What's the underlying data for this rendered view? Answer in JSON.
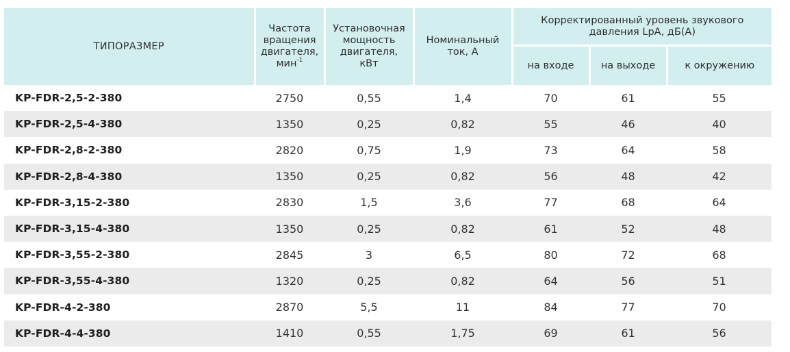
{
  "header": {
    "model": "ТИПОРАЗМЕР",
    "freq_line1": "Частота",
    "freq_line2": "вращения",
    "freq_line3": "двигателя,",
    "freq_unit": "мин",
    "freq_sup": "-1",
    "power_line1": "Установочная",
    "power_line2": "мощность",
    "power_line3": "двигателя,",
    "power_line4": "кВт",
    "current_line1": "Номинальный",
    "current_line2": "ток, А",
    "noise_line1": "Корректированный уровень звукового",
    "noise_line2": "давления LpA, дБ(А)",
    "noise_in": "на входе",
    "noise_out": "на выходе",
    "noise_env": "к окружению"
  },
  "rows": [
    {
      "model": "KP-FDR-2,5-2-380",
      "freq": "2750",
      "power": "0,55",
      "current": "1,4",
      "inlet": "70",
      "outlet": "61",
      "env": "55"
    },
    {
      "model": "KP-FDR-2,5-4-380",
      "freq": "1350",
      "power": "0,25",
      "current": "0,82",
      "inlet": "55",
      "outlet": "46",
      "env": "40"
    },
    {
      "model": "KP-FDR-2,8-2-380",
      "freq": "2820",
      "power": "0,75",
      "current": "1,9",
      "inlet": "73",
      "outlet": "64",
      "env": "58"
    },
    {
      "model": "KP-FDR-2,8-4-380",
      "freq": "1350",
      "power": "0,25",
      "current": "0,82",
      "inlet": "56",
      "outlet": "48",
      "env": "42"
    },
    {
      "model": "KP-FDR-3,15-2-380",
      "freq": "2830",
      "power": "1,5",
      "current": "3,6",
      "inlet": "77",
      "outlet": "68",
      "env": "64"
    },
    {
      "model": "KP-FDR-3,15-4-380",
      "freq": "1350",
      "power": "0,25",
      "current": "0,82",
      "inlet": "61",
      "outlet": "52",
      "env": "48"
    },
    {
      "model": "KP-FDR-3,55-2-380",
      "freq": "2845",
      "power": "3",
      "current": "6,5",
      "inlet": "80",
      "outlet": "72",
      "env": "68"
    },
    {
      "model": "KP-FDR-3,55-4-380",
      "freq": "1320",
      "power": "0,25",
      "current": "0,82",
      "inlet": "64",
      "outlet": "56",
      "env": "51"
    },
    {
      "model": "KP-FDR-4-2-380",
      "freq": "2870",
      "power": "5,5",
      "current": "11",
      "inlet": "84",
      "outlet": "77",
      "env": "70"
    },
    {
      "model": "KP-FDR-4-4-380",
      "freq": "1410",
      "power": "0,55",
      "current": "1,75",
      "inlet": "69",
      "outlet": "61",
      "env": "56"
    }
  ]
}
